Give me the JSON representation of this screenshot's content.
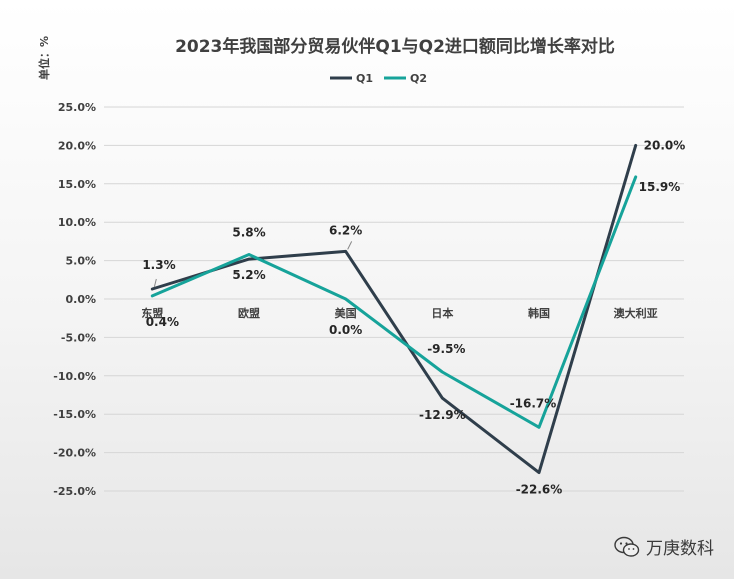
{
  "chart_data": {
    "type": "line",
    "title": "2023年我国部分贸易伙伴Q1与Q2进口额同比增长率对比",
    "ylabel": "单位：%",
    "xlabel": "",
    "categories": [
      "东盟",
      "欧盟",
      "美国",
      "日本",
      "韩国",
      "澳大利亚"
    ],
    "series": [
      {
        "name": "Q1",
        "color": "#2f3e4b",
        "values": [
          1.3,
          5.2,
          6.2,
          -12.9,
          -22.6,
          20.0
        ],
        "labels": [
          "1.3%",
          "5.2%",
          "6.2%",
          "-12.9%",
          "-22.6%",
          "20.0%"
        ]
      },
      {
        "name": "Q2",
        "color": "#16a39a",
        "values": [
          0.4,
          5.8,
          0.0,
          -9.5,
          -16.7,
          15.9
        ],
        "labels": [
          "0.4%",
          "5.8%",
          "0.0%",
          "-9.5%",
          "-16.7%",
          "15.9%"
        ]
      }
    ],
    "ylim": [
      -25,
      25
    ],
    "yticks": [
      25,
      20,
      15,
      10,
      5,
      0,
      -5,
      -10,
      -15,
      -20,
      -25
    ],
    "ytick_labels": [
      "25.0%",
      "20.0%",
      "15.0%",
      "10.0%",
      "5.0%",
      "0.0%",
      "-5.0%",
      "-10.0%",
      "-15.0%",
      "-20.0%",
      "-25.0%"
    ],
    "grid": true,
    "legend_position": "top-center"
  },
  "watermark": {
    "text": "万庚数科",
    "icon": "wechat-icon"
  }
}
